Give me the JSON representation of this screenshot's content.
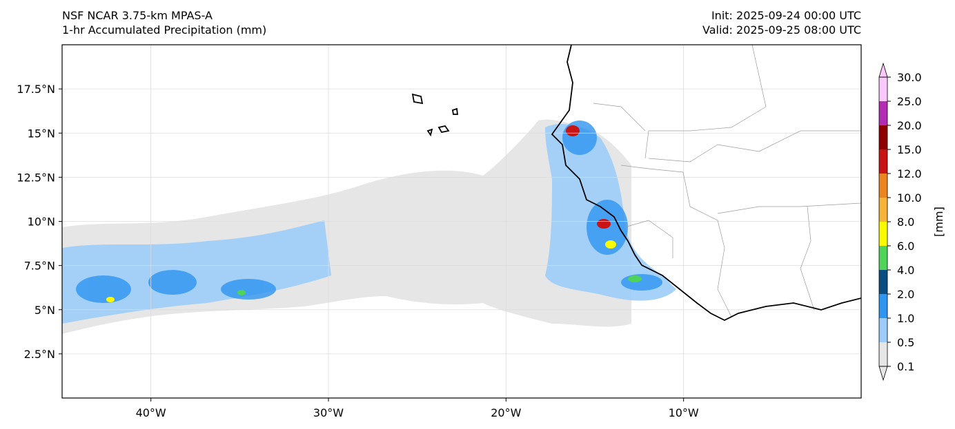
{
  "header": {
    "model": "NSF NCAR 3.75-km MPAS-A",
    "field": "1-hr Accumulated Precipitation (mm)",
    "init": "Init: 2025-09-24 00:00 UTC",
    "valid": "Valid: 2025-09-25 08:00 UTC"
  },
  "map": {
    "lon_range": [
      -45,
      0
    ],
    "lat_range": [
      0,
      20
    ],
    "lon_ticks": [
      {
        "value": -40,
        "label": "40°W"
      },
      {
        "value": -30,
        "label": "30°W"
      },
      {
        "value": -20,
        "label": "20°W"
      },
      {
        "value": -10,
        "label": "10°W"
      }
    ],
    "lat_ticks": [
      {
        "value": 2.5,
        "label": "2.5°N"
      },
      {
        "value": 5,
        "label": "5°N"
      },
      {
        "value": 7.5,
        "label": "7.5°N"
      },
      {
        "value": 10,
        "label": "10°N"
      },
      {
        "value": 12.5,
        "label": "12.5°N"
      },
      {
        "value": 15,
        "label": "15°N"
      },
      {
        "value": 17.5,
        "label": "17.5°N"
      }
    ],
    "gridlines": true
  },
  "colorbar": {
    "unit_label": "[mm]",
    "levels": [
      "0.1",
      "0.5",
      "1.0",
      "2.0",
      "4.0",
      "6.0",
      "8.0",
      "10.0",
      "12.0",
      "15.0",
      "20.0",
      "25.0",
      "30.0"
    ],
    "colors": [
      "#e6e6e6",
      "#9ccdfa",
      "#2f95f0",
      "#0a4e82",
      "#4fd459",
      "#fafa00",
      "#f5b33a",
      "#ea8521",
      "#c81414",
      "#8f0000",
      "#b22db4",
      "#fbc8fb"
    ]
  }
}
